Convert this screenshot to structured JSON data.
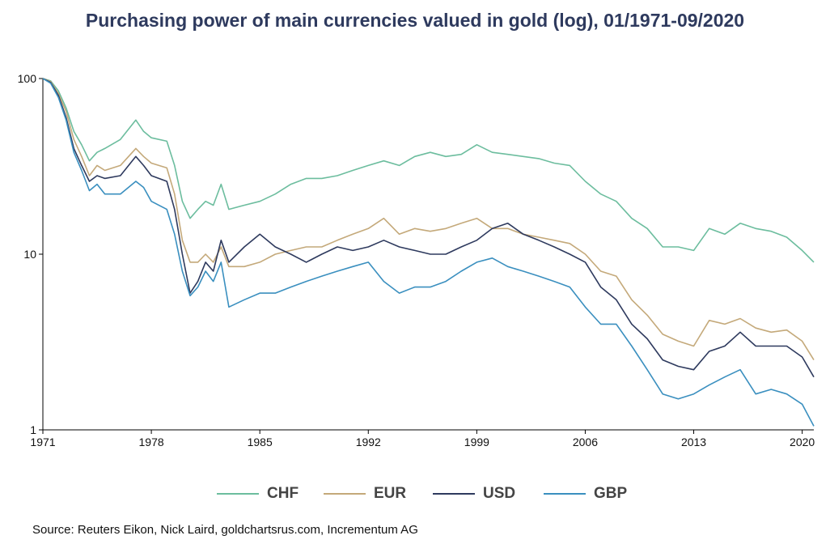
{
  "chart_data": {
    "type": "line",
    "title": "Purchasing power of main currencies valued in gold (log), 01/1971-09/2020",
    "y_scale": "log",
    "ylim": [
      1,
      100
    ],
    "xlim": [
      1971,
      2020.75
    ],
    "y_ticks": [
      "1",
      "10",
      "100"
    ],
    "x_ticks": [
      "1971",
      "1978",
      "1985",
      "1992",
      "1999",
      "2006",
      "2013",
      "2020"
    ],
    "legend_position": "bottom",
    "source": "Source: Reuters Eikon, Nick Laird, goldchartsrus.com, Incrementum AG",
    "series": [
      {
        "name": "CHF",
        "color": "#6cbd9e",
        "x": [
          1971,
          1971.5,
          1972,
          1972.5,
          1973,
          1973.5,
          1974,
          1974.5,
          1975,
          1976,
          1977,
          1977.5,
          1978,
          1979,
          1979.5,
          1980,
          1980.5,
          1981,
          1981.5,
          1982,
          1982.5,
          1983,
          1984,
          1985,
          1986,
          1987,
          1988,
          1989,
          1990,
          1991,
          1992,
          1993,
          1994,
          1995,
          1996,
          1997,
          1998,
          1999,
          2000,
          2001,
          2002,
          2003,
          2004,
          2005,
          2006,
          2007,
          2008,
          2009,
          2010,
          2011,
          2012,
          2013,
          2014,
          2015,
          2016,
          2017,
          2018,
          2019,
          2020,
          2020.75
        ],
        "values": [
          100,
          97,
          85,
          68,
          50,
          42,
          34,
          38,
          40,
          45,
          58,
          50,
          46,
          44,
          32,
          20,
          16,
          18,
          20,
          19,
          25,
          18,
          19,
          20,
          22,
          25,
          27,
          27,
          28,
          30,
          32,
          34,
          32,
          36,
          38,
          36,
          37,
          42,
          38,
          37,
          36,
          35,
          33,
          32,
          26,
          22,
          20,
          16,
          14,
          11,
          11,
          10.5,
          14,
          13,
          15,
          14,
          13.5,
          12.5,
          10.5,
          9
        ]
      },
      {
        "name": "EUR",
        "color": "#c4a97a",
        "x": [
          1971,
          1971.5,
          1972,
          1972.5,
          1973,
          1973.5,
          1974,
          1974.5,
          1975,
          1976,
          1977,
          1977.5,
          1978,
          1979,
          1979.5,
          1980,
          1980.5,
          1981,
          1981.5,
          1982,
          1982.5,
          1983,
          1984,
          1985,
          1986,
          1987,
          1988,
          1989,
          1990,
          1991,
          1992,
          1993,
          1994,
          1995,
          1996,
          1997,
          1998,
          1999,
          2000,
          2001,
          2002,
          2003,
          2004,
          2005,
          2006,
          2007,
          2008,
          2009,
          2010,
          2011,
          2012,
          2013,
          2014,
          2015,
          2016,
          2017,
          2018,
          2019,
          2020,
          2020.75
        ],
        "values": [
          100,
          96,
          82,
          65,
          45,
          36,
          28,
          32,
          30,
          32,
          40,
          36,
          33,
          31,
          22,
          12,
          9,
          9,
          10,
          9,
          11,
          8.5,
          8.5,
          9,
          10,
          10.5,
          11,
          11,
          12,
          13,
          14,
          16,
          13,
          14,
          13.5,
          14,
          15,
          16,
          14,
          14,
          13,
          12.5,
          12,
          11.5,
          10,
          8,
          7.5,
          5.5,
          4.5,
          3.5,
          3.2,
          3,
          4.2,
          4,
          4.3,
          3.8,
          3.6,
          3.7,
          3.2,
          2.5
        ]
      },
      {
        "name": "USD",
        "color": "#2e3a5e",
        "x": [
          1971,
          1971.5,
          1972,
          1972.5,
          1973,
          1973.5,
          1974,
          1974.5,
          1975,
          1976,
          1977,
          1977.5,
          1978,
          1979,
          1979.5,
          1980,
          1980.5,
          1981,
          1981.5,
          1982,
          1982.5,
          1983,
          1984,
          1985,
          1986,
          1987,
          1988,
          1989,
          1990,
          1991,
          1992,
          1993,
          1994,
          1995,
          1996,
          1997,
          1998,
          1999,
          2000,
          2001,
          2002,
          2003,
          2004,
          2005,
          2006,
          2007,
          2008,
          2009,
          2010,
          2011,
          2012,
          2013,
          2014,
          2015,
          2016,
          2017,
          2018,
          2019,
          2020,
          2020.75
        ],
        "values": [
          100,
          95,
          80,
          60,
          40,
          32,
          26,
          28,
          27,
          28,
          36,
          32,
          28,
          26,
          18,
          10,
          6,
          7,
          9,
          8,
          12,
          9,
          11,
          13,
          11,
          10,
          9,
          10,
          11,
          10.5,
          11,
          12,
          11,
          10.5,
          10,
          10,
          11,
          12,
          14,
          15,
          13,
          12,
          11,
          10,
          9,
          6.5,
          5.5,
          4,
          3.3,
          2.5,
          2.3,
          2.2,
          2.8,
          3,
          3.6,
          3,
          3,
          3,
          2.6,
          2
        ]
      },
      {
        "name": "GBP",
        "color": "#3a8fbf",
        "x": [
          1971,
          1971.5,
          1972,
          1972.5,
          1973,
          1973.5,
          1974,
          1974.5,
          1975,
          1976,
          1977,
          1977.5,
          1978,
          1979,
          1979.5,
          1980,
          1980.5,
          1981,
          1981.5,
          1982,
          1982.5,
          1983,
          1984,
          1985,
          1986,
          1987,
          1988,
          1989,
          1990,
          1991,
          1992,
          1993,
          1994,
          1995,
          1996,
          1997,
          1998,
          1999,
          2000,
          2001,
          2002,
          2003,
          2004,
          2005,
          2006,
          2007,
          2008,
          2009,
          2010,
          2011,
          2012,
          2013,
          2014,
          2015,
          2016,
          2017,
          2018,
          2019,
          2020,
          2020.75
        ],
        "values": [
          100,
          94,
          78,
          58,
          38,
          30,
          23,
          25,
          22,
          22,
          26,
          24,
          20,
          18,
          13,
          8,
          5.8,
          6.5,
          8,
          7,
          9,
          5,
          5.5,
          6,
          6,
          6.5,
          7,
          7.5,
          8,
          8.5,
          9,
          7,
          6,
          6.5,
          6.5,
          7,
          8,
          9,
          9.5,
          8.5,
          8,
          7.5,
          7,
          6.5,
          5,
          4,
          4,
          3,
          2.2,
          1.6,
          1.5,
          1.6,
          1.8,
          2,
          2.2,
          1.6,
          1.7,
          1.6,
          1.4,
          1.05
        ]
      }
    ]
  }
}
